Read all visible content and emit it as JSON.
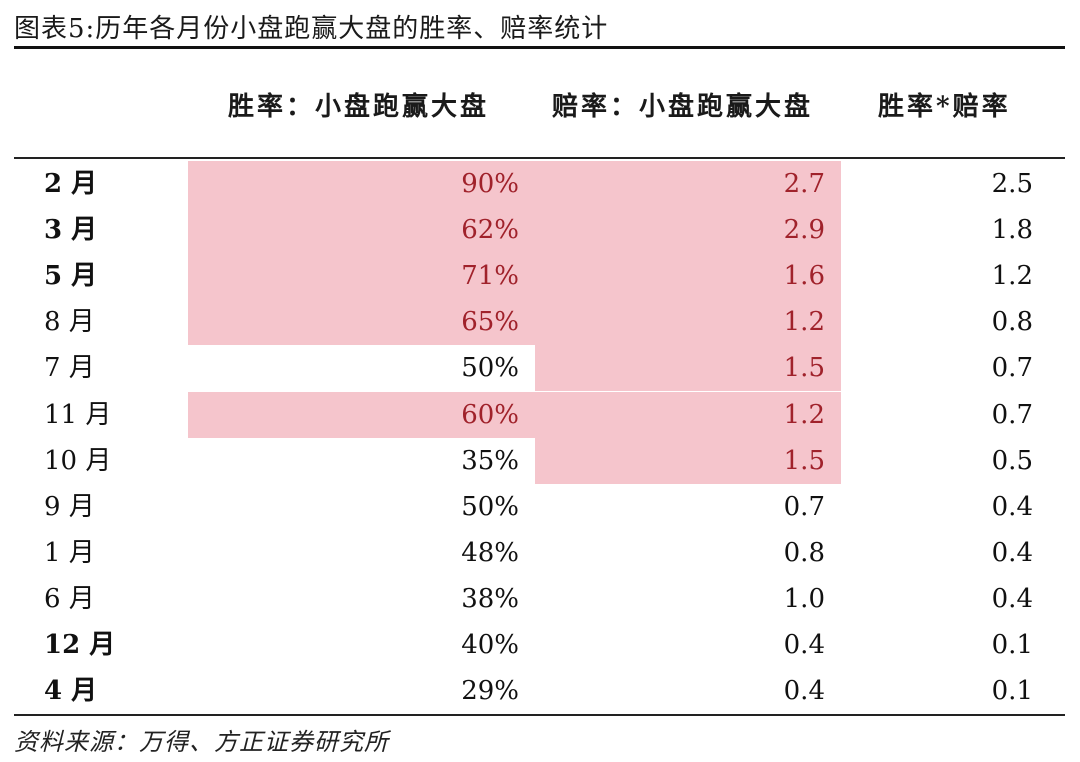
{
  "title": "图表5:历年各月份小盘跑赢大盘的胜率、赔率统计",
  "headers": {
    "win_rate": "胜率：小盘跑赢大盘",
    "odds": "赔率：小盘跑赢大盘",
    "product": "胜率*赔率"
  },
  "highlight_color": "#f5c5cc",
  "highlight_text_color": "#a0222b",
  "rows": [
    {
      "month": "2 月",
      "bold": true,
      "win": "90%",
      "odds": "2.7",
      "product": "2.5",
      "win_hl": true,
      "odds_hl": true
    },
    {
      "month": "3 月",
      "bold": true,
      "win": "62%",
      "odds": "2.9",
      "product": "1.8",
      "win_hl": true,
      "odds_hl": true
    },
    {
      "month": "5 月",
      "bold": true,
      "win": "71%",
      "odds": "1.6",
      "product": "1.2",
      "win_hl": true,
      "odds_hl": true
    },
    {
      "month": "8 月",
      "bold": false,
      "win": "65%",
      "odds": "1.2",
      "product": "0.8",
      "win_hl": true,
      "odds_hl": true
    },
    {
      "month": "7 月",
      "bold": false,
      "win": "50%",
      "odds": "1.5",
      "product": "0.7",
      "win_hl": false,
      "odds_hl": true
    },
    {
      "month": "11 月",
      "bold": false,
      "win": "60%",
      "odds": "1.2",
      "product": "0.7",
      "win_hl": true,
      "odds_hl": true
    },
    {
      "month": "10 月",
      "bold": false,
      "win": "35%",
      "odds": "1.5",
      "product": "0.5",
      "win_hl": false,
      "odds_hl": true
    },
    {
      "month": "9 月",
      "bold": false,
      "win": "50%",
      "odds": "0.7",
      "product": "0.4",
      "win_hl": false,
      "odds_hl": false
    },
    {
      "month": "1 月",
      "bold": false,
      "win": "48%",
      "odds": "0.8",
      "product": "0.4",
      "win_hl": false,
      "odds_hl": false
    },
    {
      "month": "6 月",
      "bold": false,
      "win": "38%",
      "odds": "1.0",
      "product": "0.4",
      "win_hl": false,
      "odds_hl": false
    },
    {
      "month": "12 月",
      "bold": true,
      "win": "40%",
      "odds": "0.4",
      "product": "0.1",
      "win_hl": false,
      "odds_hl": false
    },
    {
      "month": "4 月",
      "bold": true,
      "win": "29%",
      "odds": "0.4",
      "product": "0.1",
      "win_hl": false,
      "odds_hl": false
    }
  ],
  "source": "资料来源：万得、方正证券研究所"
}
